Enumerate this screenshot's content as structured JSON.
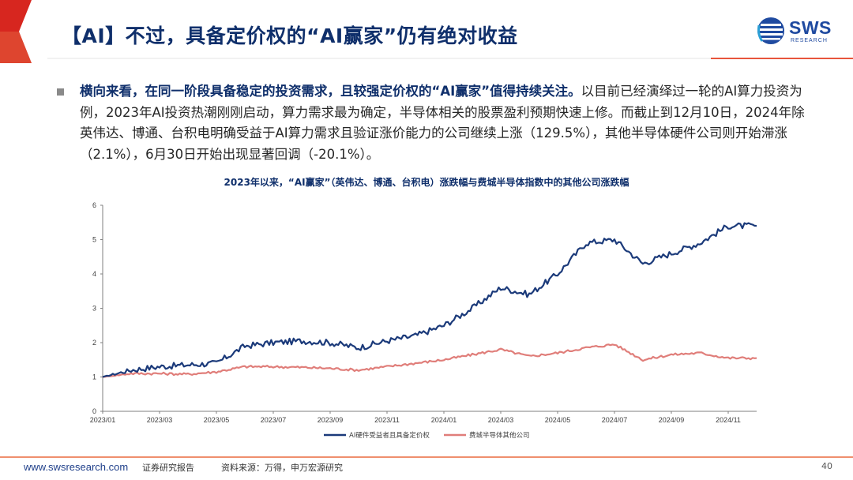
{
  "slide": {
    "title": "【AI】不过，具备定价权的“AI赢家”仍有绝对收益",
    "bullet_bold": "横向来看，在同一阶段具备稳定的投资需求，且较强定价权的“AI赢家”值得持续关注。",
    "bullet_rest": "以目前已经演绎过一轮的AI算力投资为例，2023年AI投资热潮刚刚启动，算力需求最为确定，半导体相关的股票盈利预期快速上修。而截止到12月10日，2024年除英伟达、博通、台积电明确受益于AI算力需求且验证涨价能力的公司继续上涨（129.5%），其他半导体硬件公司则开始滞涨（2.1%），6月30日开始出现显著回调（-20.1%）。"
  },
  "logo": {
    "word": "SWS",
    "sub": "RESEARCH"
  },
  "footer": {
    "url": "www.swsresearch.com",
    "doc_type": "证券研究报告",
    "source": "资料来源：万得，申万宏源研究",
    "page": "40"
  },
  "colors": {
    "title_navy": "#0f2f6b",
    "header_red": "#d7261f",
    "series_navy": "#1b3a7a",
    "series_red": "#e07e7a"
  },
  "chart_data": {
    "type": "line",
    "title": "2023年以来，“AI赢家”（英伟达、博通、台积电）涨跌幅与费城半导体指数中的其他公司涨跌幅",
    "xlabel": "",
    "ylabel": "",
    "ylim": [
      0,
      6
    ],
    "yticks": [
      "0",
      "1",
      "2",
      "3",
      "4",
      "5",
      "6"
    ],
    "xticks": [
      "2023/01",
      "2023/03",
      "2023/05",
      "2023/07",
      "2023/09",
      "2023/11",
      "2024/01",
      "2024/03",
      "2024/05",
      "2024/07",
      "2024/09",
      "2024/11"
    ],
    "x": [
      "2023/01",
      "2023/02",
      "2023/03",
      "2023/04",
      "2023/05",
      "2023/06",
      "2023/07",
      "2023/08",
      "2023/09",
      "2023/10",
      "2023/11",
      "2023/12",
      "2024/01",
      "2024/02",
      "2024/03",
      "2024/04",
      "2024/05",
      "2024/06",
      "2024/07",
      "2024/08",
      "2024/09",
      "2024/10",
      "2024/11",
      "2024/12"
    ],
    "grid": false,
    "legend_position": "bottom-center",
    "series": [
      {
        "name": "AI硬件受益者且具备定价权",
        "color": "#1b3a7a",
        "values": [
          1.0,
          1.2,
          1.3,
          1.35,
          1.4,
          1.9,
          2.0,
          2.05,
          2.0,
          1.85,
          2.05,
          2.2,
          2.5,
          3.0,
          3.6,
          3.4,
          4.0,
          4.9,
          5.0,
          4.3,
          4.6,
          4.9,
          5.4,
          5.4
        ]
      },
      {
        "name": "费城半导体其他公司",
        "color": "#e07e7a",
        "values": [
          1.0,
          1.1,
          1.1,
          1.08,
          1.15,
          1.3,
          1.3,
          1.28,
          1.25,
          1.2,
          1.3,
          1.4,
          1.5,
          1.65,
          1.8,
          1.6,
          1.7,
          1.85,
          1.95,
          1.5,
          1.65,
          1.7,
          1.55,
          1.55
        ]
      }
    ]
  }
}
